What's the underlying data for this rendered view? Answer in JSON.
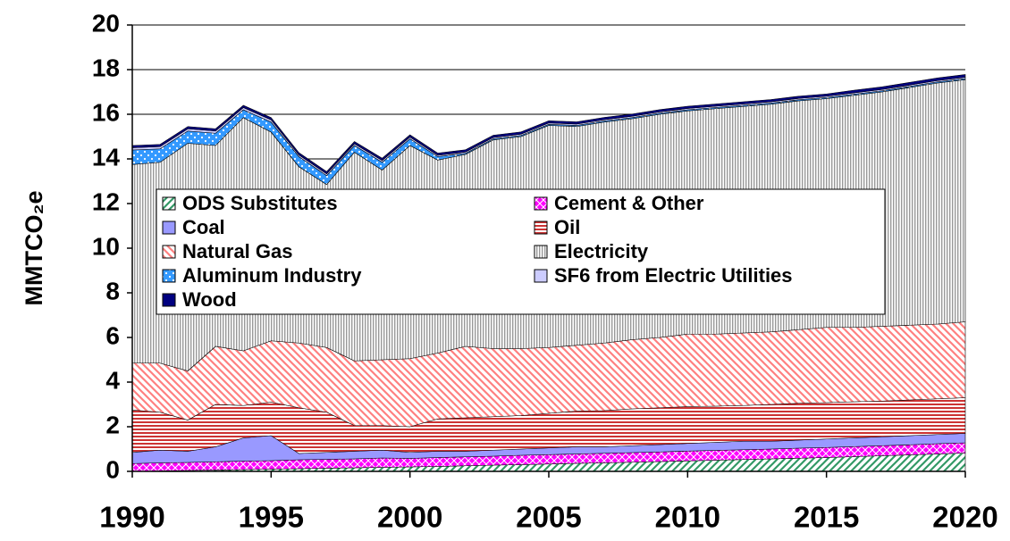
{
  "chart_data": {
    "type": "stacked-area",
    "y_label": "MMTCO₂e",
    "x": [
      1990,
      1991,
      1992,
      1993,
      1994,
      1995,
      1996,
      1997,
      1998,
      1999,
      2000,
      2001,
      2002,
      2003,
      2004,
      2005,
      2006,
      2007,
      2008,
      2009,
      2010,
      2011,
      2012,
      2013,
      2014,
      2015,
      2016,
      2017,
      2018,
      2019,
      2020
    ],
    "xlim": [
      1990,
      2020
    ],
    "xticks": [
      1990,
      1995,
      2000,
      2005,
      2010,
      2015,
      2020
    ],
    "ylim": [
      0,
      20
    ],
    "yticks": [
      0,
      2,
      4,
      6,
      8,
      10,
      12,
      14,
      16,
      18,
      20
    ],
    "grid": true,
    "legend": "center",
    "series": [
      {
        "name": "ODS Substitutes",
        "color": "#339966",
        "pattern": "diag-up",
        "values": [
          0,
          0.02,
          0.04,
          0.06,
          0.08,
          0.1,
          0.12,
          0.14,
          0.16,
          0.18,
          0.2,
          0.22,
          0.25,
          0.28,
          0.3,
          0.33,
          0.36,
          0.38,
          0.41,
          0.44,
          0.47,
          0.5,
          0.53,
          0.56,
          0.59,
          0.62,
          0.66,
          0.7,
          0.74,
          0.78,
          0.82
        ]
      },
      {
        "name": "Cement & Other",
        "color": "#ff00ff",
        "pattern": "crosshatch",
        "values": [
          0.35,
          0.36,
          0.36,
          0.37,
          0.38,
          0.38,
          0.4,
          0.4,
          0.4,
          0.42,
          0.38,
          0.4,
          0.4,
          0.4,
          0.42,
          0.42,
          0.42,
          0.43,
          0.43,
          0.43,
          0.44,
          0.44,
          0.44,
          0.44,
          0.45,
          0.45,
          0.45,
          0.45,
          0.45,
          0.46,
          0.46
        ]
      },
      {
        "name": "Coal",
        "color": "#9999ff",
        "pattern": "solid",
        "values": [
          0.5,
          0.57,
          0.5,
          0.67,
          1.04,
          1.12,
          0.28,
          0.31,
          0.34,
          0.35,
          0.27,
          0.28,
          0.25,
          0.27,
          0.28,
          0.3,
          0.32,
          0.29,
          0.31,
          0.33,
          0.34,
          0.36,
          0.38,
          0.35,
          0.36,
          0.38,
          0.39,
          0.4,
          0.41,
          0.41,
          0.42
        ]
      },
      {
        "name": "Oil",
        "color": "#cc3333",
        "pattern": "hlines",
        "values": [
          1.9,
          1.7,
          1.4,
          1.9,
          1.45,
          1.5,
          2.05,
          1.8,
          1.15,
          1.1,
          1.15,
          1.45,
          1.5,
          1.5,
          1.5,
          1.55,
          1.6,
          1.62,
          1.65,
          1.65,
          1.65,
          1.62,
          1.6,
          1.65,
          1.65,
          1.63,
          1.62,
          1.6,
          1.6,
          1.6,
          1.6
        ]
      },
      {
        "name": "Natural Gas",
        "color": "#ff8080",
        "pattern": "diag-down",
        "values": [
          2.1,
          2.2,
          2.2,
          2.6,
          2.45,
          2.75,
          2.9,
          2.9,
          2.9,
          2.95,
          3.05,
          2.95,
          3.2,
          3.05,
          3.0,
          2.95,
          2.95,
          3.03,
          3.1,
          3.15,
          3.25,
          3.23,
          3.25,
          3.25,
          3.3,
          3.37,
          3.33,
          3.35,
          3.35,
          3.35,
          3.4
        ]
      },
      {
        "name": "Electricity",
        "color": "#999999",
        "pattern": "vlines",
        "values": [
          8.9,
          9.0,
          10.2,
          9.0,
          10.45,
          9.35,
          7.9,
          7.3,
          9.35,
          8.5,
          9.55,
          8.65,
          8.6,
          9.35,
          9.5,
          9.95,
          9.8,
          9.9,
          9.9,
          10.0,
          10.0,
          10.1,
          10.15,
          10.2,
          10.25,
          10.25,
          10.4,
          10.5,
          10.65,
          10.8,
          10.85
        ]
      },
      {
        "name": "Aluminum Industry",
        "color": "#3399ff",
        "pattern": "dots",
        "values": [
          0.65,
          0.6,
          0.55,
          0.55,
          0.35,
          0.45,
          0.45,
          0.4,
          0.3,
          0.35,
          0.3,
          0.15,
          0.05,
          0.05,
          0.05,
          0.05,
          0.05,
          0.05,
          0.05,
          0.05,
          0.05,
          0.05,
          0.05,
          0.05,
          0.05,
          0.05,
          0.05,
          0.05,
          0.05,
          0.05,
          0.05
        ]
      },
      {
        "name": "SF6 from Electric Utilities",
        "color": "#ccccff",
        "pattern": "solid",
        "values": [
          0.1,
          0.1,
          0.1,
          0.1,
          0.1,
          0.1,
          0.08,
          0.08,
          0.08,
          0.08,
          0.08,
          0.06,
          0.06,
          0.06,
          0.06,
          0.06,
          0.06,
          0.06,
          0.06,
          0.06,
          0.06,
          0.06,
          0.06,
          0.06,
          0.06,
          0.06,
          0.06,
          0.06,
          0.06,
          0.06,
          0.06
        ]
      },
      {
        "name": "Wood",
        "color": "#000080",
        "pattern": "solid",
        "values": [
          0.1,
          0.1,
          0.1,
          0.1,
          0.1,
          0.1,
          0.1,
          0.1,
          0.1,
          0.1,
          0.1,
          0.1,
          0.1,
          0.1,
          0.1,
          0.1,
          0.1,
          0.1,
          0.1,
          0.1,
          0.1,
          0.1,
          0.1,
          0.1,
          0.1,
          0.1,
          0.12,
          0.12,
          0.12,
          0.12,
          0.12
        ]
      }
    ]
  }
}
